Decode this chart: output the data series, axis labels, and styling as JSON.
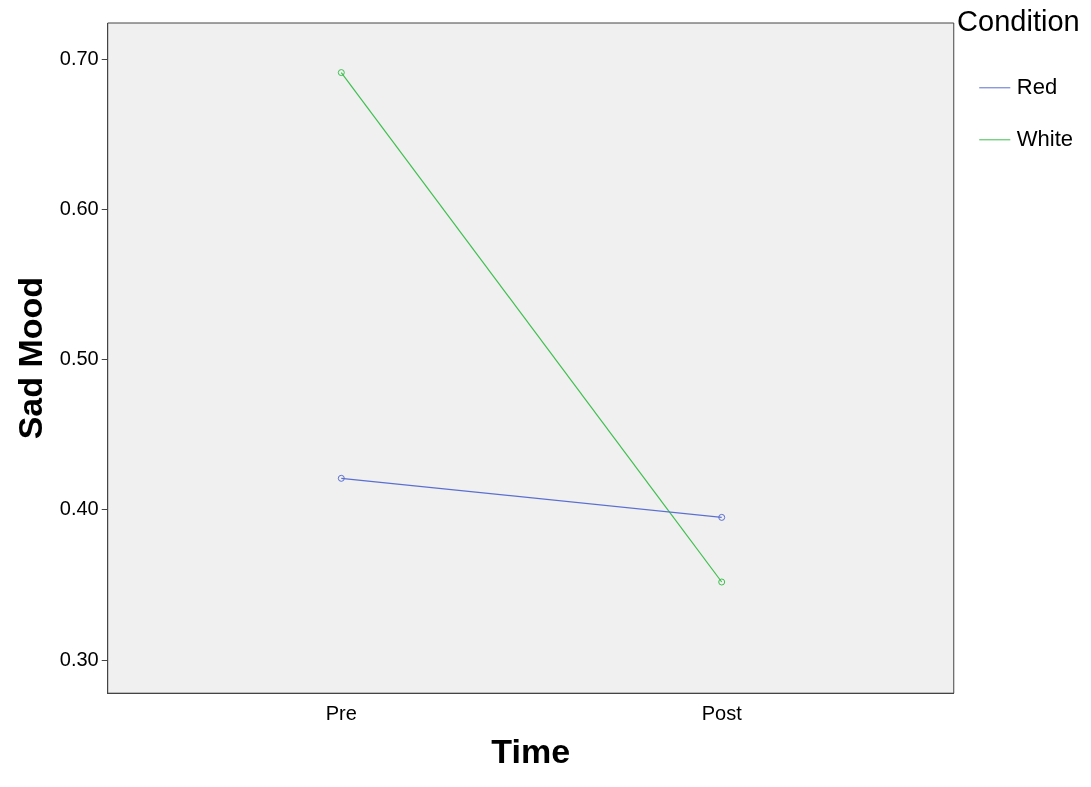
{
  "chart_data": {
    "type": "line",
    "xlabel": "Time",
    "ylabel": "Sad Mood",
    "legend_title": "Condition",
    "categories": [
      "Pre",
      "Post"
    ],
    "series": [
      {
        "name": "Red",
        "color": "#5b6fd1",
        "values": [
          0.421,
          0.395
        ]
      },
      {
        "name": "White",
        "color": "#3fbf4f",
        "values": [
          0.691,
          0.352
        ]
      }
    ],
    "ylim": [
      0.278,
      0.724
    ],
    "yticks": [
      {
        "value": 0.3,
        "label": "0.30"
      },
      {
        "value": 0.4,
        "label": "0.40"
      },
      {
        "value": 0.5,
        "label": "0.50"
      },
      {
        "value": 0.6,
        "label": "0.60"
      },
      {
        "value": 0.7,
        "label": "0.70"
      }
    ],
    "grid": false,
    "legend": "top right",
    "marker": "circle",
    "line_style": "solid"
  }
}
